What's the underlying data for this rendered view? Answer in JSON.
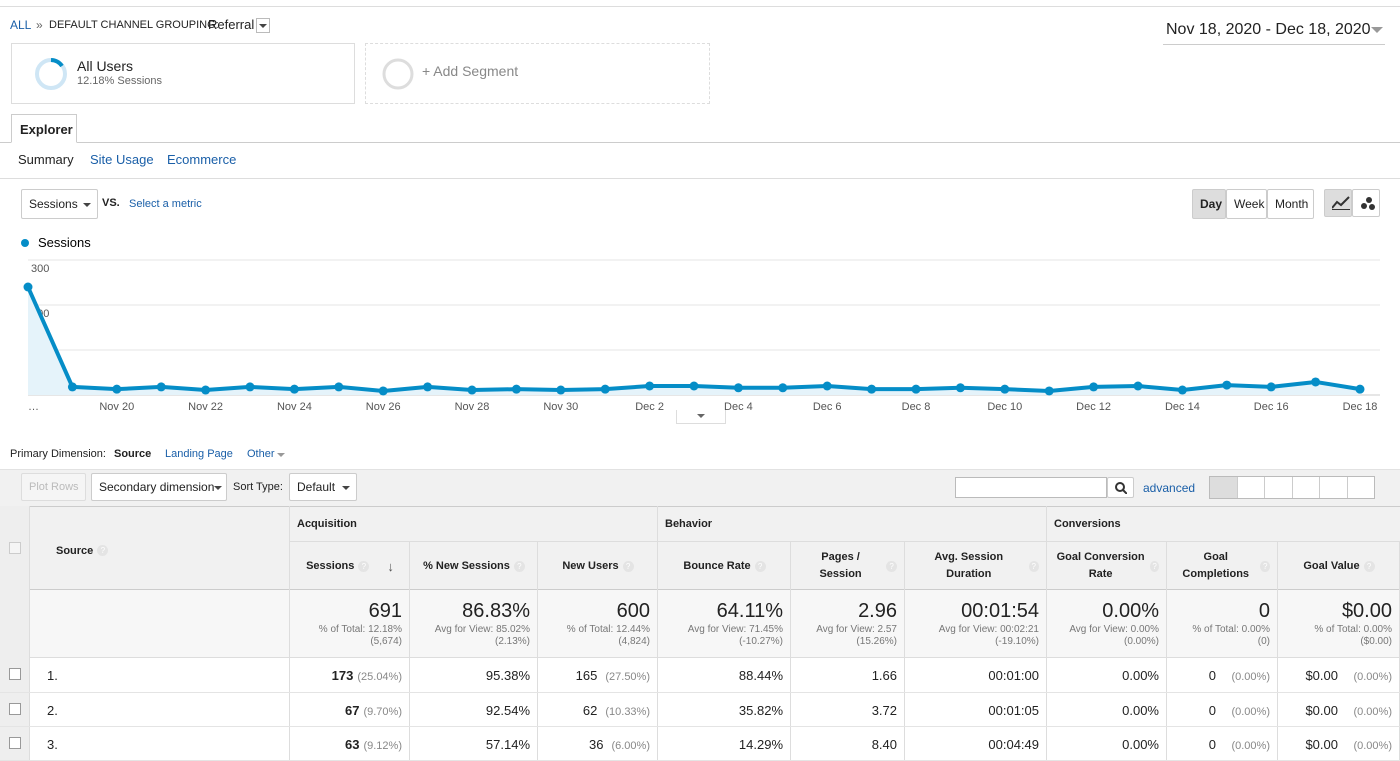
{
  "breadcrumb": {
    "all": "ALL",
    "separator": "»",
    "grouping": "DEFAULT CHANNEL GROUPING:",
    "value": "Referral"
  },
  "date_range": "Nov 18, 2020 - Dec 18, 2020",
  "segments": {
    "active": {
      "name": "All Users",
      "detail": "12.18% Sessions"
    },
    "add": "+ Add Segment"
  },
  "tab": "Explorer",
  "subtabs": [
    "Summary",
    "Site Usage",
    "Ecommerce"
  ],
  "metric_selector": {
    "metric": "Sessions",
    "vs": "VS.",
    "select": "Select a metric"
  },
  "granularity": [
    "Day",
    "Week",
    "Month"
  ],
  "chart_data": {
    "type": "line",
    "categories": [
      "…",
      null,
      "Nov 20",
      null,
      "Nov 22",
      null,
      "Nov 24",
      null,
      "Nov 26",
      null,
      "Nov 28",
      null,
      "Nov 30",
      null,
      "Dec 2",
      null,
      "Dec 4",
      null,
      "Dec 6",
      null,
      "Dec 8",
      null,
      "Dec 10",
      null,
      "Dec 12",
      null,
      "Dec 14",
      null,
      "Dec 16",
      null,
      "Dec 18"
    ],
    "series": [
      {
        "name": "Sessions",
        "color": "#058dc7",
        "values": [
          240,
          18,
          13,
          18,
          11,
          18,
          13,
          18,
          9,
          18,
          11,
          13,
          11,
          13,
          20,
          20,
          16,
          16,
          20,
          13,
          13,
          16,
          13,
          9,
          18,
          20,
          11,
          22,
          18,
          29,
          13
        ]
      }
    ],
    "ylim": [
      0,
      300
    ],
    "yticks": [
      100,
      200,
      300
    ],
    "grid": true,
    "area": true
  },
  "dimension": {
    "label": "Primary Dimension:",
    "options": [
      "Source",
      "Landing Page",
      "Other"
    ]
  },
  "toolbar": {
    "plot_rows": "Plot Rows",
    "secondary": "Secondary dimension",
    "sort_label": "Sort Type:",
    "sort_value": "Default",
    "advanced": "advanced"
  },
  "table": {
    "dimension_header": "Source",
    "groups": [
      "Acquisition",
      "Behavior",
      "Conversions"
    ],
    "columns": [
      "Sessions",
      "% New Sessions",
      "New Users",
      "Bounce Rate",
      "Pages / Session",
      "Avg. Session Duration",
      "Goal Conversion Rate",
      "Goal Completions",
      "Goal Value"
    ],
    "summary": [
      {
        "value": "691",
        "note": "% of Total: 12.18%",
        "base": "(5,674)"
      },
      {
        "value": "86.83%",
        "note": "Avg for View: 85.02%",
        "base": "(2.13%)"
      },
      {
        "value": "600",
        "note": "% of Total: 12.44%",
        "base": "(4,824)"
      },
      {
        "value": "64.11%",
        "note": "Avg for View: 71.45%",
        "base": "(-10.27%)"
      },
      {
        "value": "2.96",
        "note": "Avg for View: 2.57",
        "base": "(15.26%)"
      },
      {
        "value": "00:01:54",
        "note": "Avg for View: 00:02:21",
        "base": "(-19.10%)"
      },
      {
        "value": "0.00%",
        "note": "Avg for View: 0.00%",
        "base": "(0.00%)"
      },
      {
        "value": "0",
        "note": "% of Total: 0.00%",
        "base": "(0)"
      },
      {
        "value": "$0.00",
        "note": "% of Total: 0.00%",
        "base": "($0.00)"
      }
    ],
    "rows": [
      {
        "number": "1.",
        "cells": [
          {
            "value": "173",
            "share": "(25.04%)"
          },
          {
            "value": "95.38%"
          },
          {
            "value": "165",
            "share": "(27.50%)"
          },
          {
            "value": "88.44%"
          },
          {
            "value": "1.66"
          },
          {
            "value": "00:01:00"
          },
          {
            "value": "0.00%"
          },
          {
            "value": "0",
            "share": "(0.00%)"
          },
          {
            "value": "$0.00",
            "share": "(0.00%)"
          }
        ]
      },
      {
        "number": "2.",
        "cells": [
          {
            "value": "67",
            "share": "(9.70%)"
          },
          {
            "value": "92.54%"
          },
          {
            "value": "62",
            "share": "(10.33%)"
          },
          {
            "value": "35.82%"
          },
          {
            "value": "3.72"
          },
          {
            "value": "00:01:05"
          },
          {
            "value": "0.00%"
          },
          {
            "value": "0",
            "share": "(0.00%)"
          },
          {
            "value": "$0.00",
            "share": "(0.00%)"
          }
        ]
      },
      {
        "number": "3.",
        "cells": [
          {
            "value": "63",
            "share": "(9.12%)"
          },
          {
            "value": "57.14%"
          },
          {
            "value": "36",
            "share": "(6.00%)"
          },
          {
            "value": "14.29%"
          },
          {
            "value": "8.40"
          },
          {
            "value": "00:04:49"
          },
          {
            "value": "0.00%"
          },
          {
            "value": "0",
            "share": "(0.00%)"
          },
          {
            "value": "$0.00",
            "share": "(0.00%)"
          }
        ]
      }
    ]
  }
}
